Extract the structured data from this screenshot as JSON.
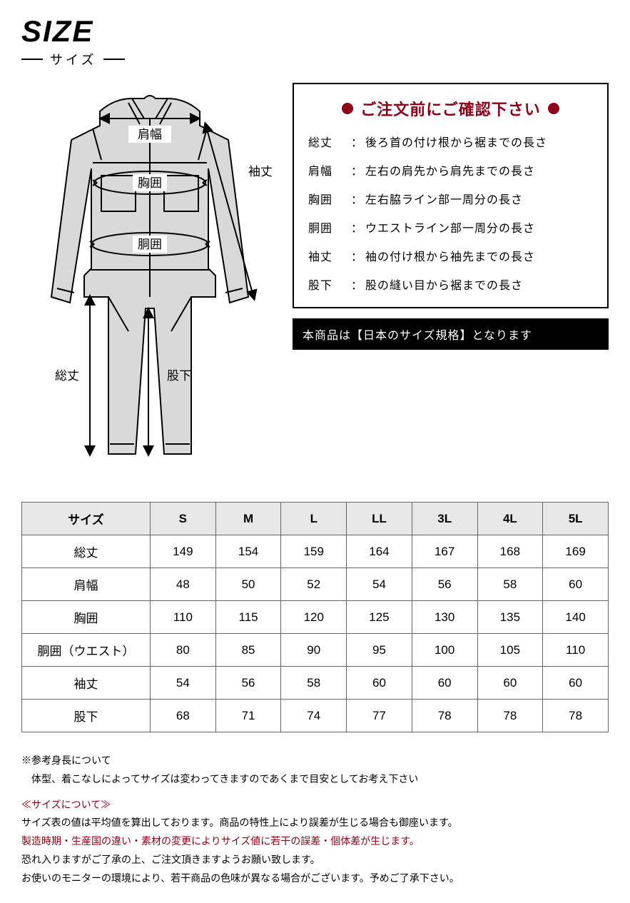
{
  "header": {
    "en": "SIZE",
    "jp": "サイズ"
  },
  "diagram_labels": {
    "shoulder": "肩幅",
    "chest": "胸囲",
    "waist": "胴囲",
    "sleeve": "袖丈",
    "total": "総丈",
    "inseam": "股下"
  },
  "info": {
    "title": "ご注文前にご確認下さい",
    "defs": [
      {
        "term": "総丈",
        "desc": "後ろ首の付け根から裾までの長さ"
      },
      {
        "term": "肩幅",
        "desc": "左右の肩先から肩先までの長さ"
      },
      {
        "term": "胸囲",
        "desc": "左右脇ライン部一周分の長さ"
      },
      {
        "term": "胴囲",
        "desc": "ウエストライン部一周分の長さ"
      },
      {
        "term": "袖丈",
        "desc": "袖の付け根から袖先までの長さ"
      },
      {
        "term": "股下",
        "desc": "股の縫い目から裾までの長さ"
      }
    ],
    "band": "本商品は【日本のサイズ規格】となります"
  },
  "table": {
    "head_label": "サイズ",
    "columns": [
      "S",
      "M",
      "L",
      "LL",
      "3L",
      "4L",
      "5L"
    ],
    "rows": [
      {
        "label": "総丈",
        "values": [
          149,
          154,
          159,
          164,
          167,
          168,
          169
        ]
      },
      {
        "label": "肩幅",
        "values": [
          48,
          50,
          52,
          54,
          56,
          58,
          60
        ]
      },
      {
        "label": "胸囲",
        "values": [
          110,
          115,
          120,
          125,
          130,
          135,
          140
        ]
      },
      {
        "label": "胴囲（ウエスト）",
        "values": [
          80,
          85,
          90,
          95,
          100,
          105,
          110
        ]
      },
      {
        "label": "袖丈",
        "values": [
          54,
          56,
          58,
          60,
          60,
          60,
          60
        ]
      },
      {
        "label": "股下",
        "values": [
          68,
          71,
          74,
          77,
          78,
          78,
          78
        ]
      }
    ]
  },
  "notes": {
    "ref1": "※参考身長について",
    "ref2": "　体型、着こなしによってサイズは変わってきますのであくまで目安としてお考え下さい",
    "heading": "≪サイズについて≫",
    "l1": "サイズ表の値は平均値を算出しております。商品の特性上により誤差が生じる場合も御座います。",
    "l2": "製造時期・生産国の違い・素材の変更によりサイズ値に若干の誤差・個体差が生じます。",
    "l3": "恐れ入りますがご了承の上、ご注文頂きますようお願い致します。",
    "l4": "お使いのモニターの環境により、若干商品の色味が異なる場合がございます。予めご了承下さい。"
  },
  "colors": {
    "accent": "#8b0018",
    "header_bg": "#e8e8e8",
    "band_bg": "#000000"
  }
}
